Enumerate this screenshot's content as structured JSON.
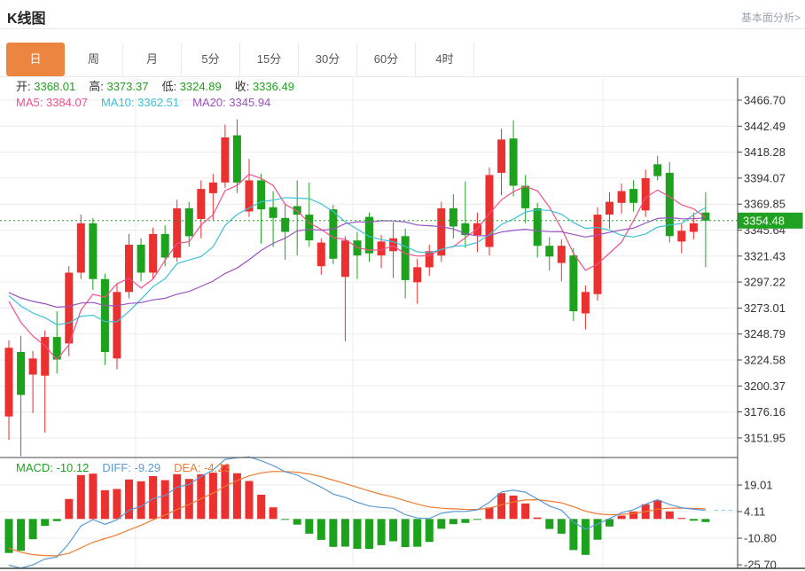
{
  "header": {
    "title": "K线图",
    "link_label": "基本面分析>"
  },
  "tabs": {
    "items": [
      "日",
      "周",
      "月",
      "5分",
      "15分",
      "30分",
      "60分",
      "4时"
    ],
    "selected_index": 0
  },
  "info_bar": {
    "items": [
      {
        "label": "开:",
        "value": "3368.01"
      },
      {
        "label": "高:",
        "value": "3373.37"
      },
      {
        "label": "低:",
        "value": "3324.89"
      },
      {
        "label": "收:",
        "value": "3336.49"
      }
    ]
  },
  "ma_bar": {
    "items": [
      {
        "label": "MA5:",
        "value": "3384.07",
        "color": "#f0508c"
      },
      {
        "label": "MA10:",
        "value": "3362.51",
        "color": "#3cc0d8"
      },
      {
        "label": "MA20:",
        "value": "3345.94",
        "color": "#9b52c0"
      }
    ]
  },
  "macd_bar": {
    "items": [
      {
        "label": "MACD:",
        "value": "-10.12",
        "color": "#21a121"
      },
      {
        "label": "DIFF:",
        "value": "-9.29",
        "color": "#5b9bd5"
      },
      {
        "label": "DEA:",
        "value": "-4.23",
        "color": "#ed7d31"
      }
    ]
  },
  "colors": {
    "accent": "#ec8540",
    "up": "#eb3030",
    "down": "#1ca21c",
    "price_line": "#21a121",
    "badge_bg": "#21a121",
    "badge_text": "#ffffff",
    "grid": "#ececec",
    "axis": "#444444",
    "tick_label": "#333333",
    "diff_line": "#5b9bd5",
    "dea_line": "#ed7d31",
    "dashed_ext": "#7fd8ea",
    "ma5": "#f0508c",
    "ma10": "#3cc0d8",
    "ma20": "#9b52c0"
  },
  "chart_data": {
    "type": "candlestick",
    "title": "K线图",
    "period_selected": "日",
    "price_axis": {
      "ticks": [
        "3466.70",
        "3442.49",
        "3418.28",
        "3394.07",
        "3369.85",
        "3345.64",
        "3321.43",
        "3297.22",
        "3273.01",
        "3248.79",
        "3224.58",
        "3200.37",
        "3176.16",
        "3151.95"
      ],
      "current_price": 3354.48,
      "current_price_label": "3354.48"
    },
    "macd_axis": {
      "ticks": [
        "19.01",
        "4.11",
        "-10.80",
        "-25.70"
      ]
    },
    "ohlc_display": {
      "open": 3368.01,
      "high": 3373.37,
      "low": 3324.89,
      "close": 3336.49
    },
    "ma_display": {
      "ma5": 3384.07,
      "ma10": 3362.51,
      "ma20": 3345.94
    },
    "indicator_display": {
      "macd": -10.12,
      "diff": -9.29,
      "dea": -4.23
    },
    "ma_periods": [
      5,
      10,
      20
    ],
    "candles": [
      [
        3172,
        3243,
        3150,
        3236
      ],
      [
        3232,
        3247,
        3135,
        3192
      ],
      [
        3211,
        3233,
        3175,
        3226
      ],
      [
        3210,
        3252,
        3157,
        3246
      ],
      [
        3246,
        3270,
        3212,
        3225
      ],
      [
        3240,
        3312,
        3228,
        3306
      ],
      [
        3306,
        3360,
        3300,
        3352
      ],
      [
        3352,
        3357,
        3290,
        3300
      ],
      [
        3300,
        3305,
        3220,
        3232
      ],
      [
        3226,
        3296,
        3216,
        3288
      ],
      [
        3288,
        3342,
        3282,
        3332
      ],
      [
        3332,
        3338,
        3298,
        3306
      ],
      [
        3306,
        3348,
        3300,
        3342
      ],
      [
        3342,
        3350,
        3312,
        3320
      ],
      [
        3320,
        3374,
        3316,
        3366
      ],
      [
        3366,
        3372,
        3330,
        3340
      ],
      [
        3356,
        3392,
        3338,
        3384
      ],
      [
        3380,
        3398,
        3355,
        3390
      ],
      [
        3390,
        3444,
        3385,
        3432
      ],
      [
        3434,
        3449,
        3380,
        3390
      ],
      [
        3363,
        3412,
        3358,
        3392
      ],
      [
        3392,
        3398,
        3333,
        3365
      ],
      [
        3367,
        3382,
        3330,
        3357
      ],
      [
        3357,
        3370,
        3318,
        3344
      ],
      [
        3368,
        3392,
        3322,
        3360
      ],
      [
        3360,
        3390,
        3330,
        3336
      ],
      [
        3312,
        3338,
        3304,
        3334
      ],
      [
        3365,
        3369,
        3314,
        3319
      ],
      [
        3302,
        3340,
        3242,
        3336
      ],
      [
        3336,
        3344,
        3300,
        3322
      ],
      [
        3358,
        3362,
        3316,
        3324
      ],
      [
        3322,
        3341,
        3310,
        3335
      ],
      [
        3326,
        3353,
        3301,
        3338
      ],
      [
        3340,
        3347,
        3282,
        3299
      ],
      [
        3297,
        3319,
        3277,
        3311
      ],
      [
        3311,
        3332,
        3303,
        3326
      ],
      [
        3322,
        3372,
        3316,
        3366
      ],
      [
        3366,
        3379,
        3338,
        3349
      ],
      [
        3352,
        3391,
        3329,
        3341
      ],
      [
        3341,
        3362,
        3325,
        3352
      ],
      [
        3330,
        3404,
        3322,
        3397
      ],
      [
        3399,
        3440,
        3378,
        3430
      ],
      [
        3431,
        3448,
        3377,
        3387
      ],
      [
        3387,
        3397,
        3352,
        3366
      ],
      [
        3366,
        3371,
        3320,
        3331
      ],
      [
        3331,
        3339,
        3308,
        3321
      ],
      [
        3315,
        3337,
        3298,
        3331
      ],
      [
        3322,
        3329,
        3261,
        3270
      ],
      [
        3268,
        3294,
        3253,
        3288
      ],
      [
        3286,
        3367,
        3280,
        3360
      ],
      [
        3360,
        3381,
        3347,
        3372
      ],
      [
        3371,
        3389,
        3361,
        3382
      ],
      [
        3384,
        3392,
        3363,
        3371
      ],
      [
        3364,
        3402,
        3358,
        3394
      ],
      [
        3407,
        3415,
        3392,
        3396
      ],
      [
        3399,
        3409,
        3334,
        3340
      ],
      [
        3335,
        3352,
        3324,
        3345
      ],
      [
        3344,
        3362,
        3337,
        3352
      ],
      [
        3362,
        3381,
        3311,
        3354.48
      ]
    ]
  }
}
